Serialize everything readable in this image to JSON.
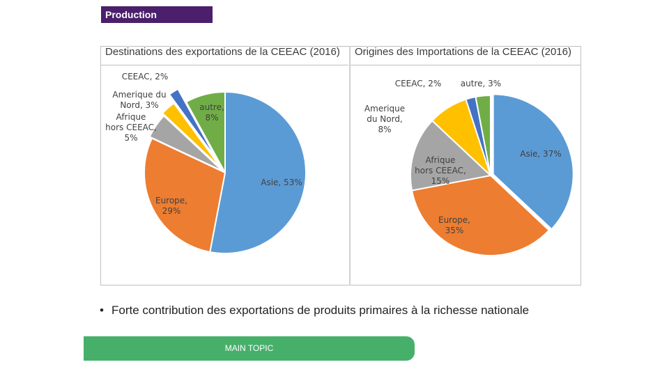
{
  "header": {
    "badge": "Production"
  },
  "chart_data": [
    {
      "type": "pie",
      "title": "Destinations des exportations de la CEEAC  (2016)",
      "slices": [
        {
          "label": "Asie, 53%",
          "value": 53,
          "color": "#5b9bd5"
        },
        {
          "label": "Europe, 29%",
          "value": 29,
          "color": "#ed7d31"
        },
        {
          "label": "Afrique hors CEEAC, 5%",
          "value": 5,
          "color": "#a5a5a5"
        },
        {
          "label": "Amerique du Nord, 3%",
          "value": 3,
          "color": "#ffc000"
        },
        {
          "label": "CEEAC, 2%",
          "value": 2,
          "color": "#4472c4"
        },
        {
          "label": "autre, 8%",
          "value": 8,
          "color": "#70ad47"
        }
      ]
    },
    {
      "type": "pie",
      "title": "Origines des Importations de la CEEAC  (2016)",
      "slices": [
        {
          "label": "Asie, 37%",
          "value": 37,
          "color": "#5b9bd5"
        },
        {
          "label": "Europe, 35%",
          "value": 35,
          "color": "#ed7d31"
        },
        {
          "label": "Afrique hors CEEAC, 15%",
          "value": 15,
          "color": "#a5a5a5"
        },
        {
          "label": "Amerique du Nord, 8%",
          "value": 8,
          "color": "#ffc000"
        },
        {
          "label": "CEEAC, 2%",
          "value": 2,
          "color": "#4472c4"
        },
        {
          "label": "autre, 3%",
          "value": 3,
          "color": "#70ad47"
        }
      ]
    }
  ],
  "bullet": {
    "marker": "•",
    "text": "Forte contribution des exportations de produits primaires à la richesse nationale"
  },
  "footer": {
    "label": "MAIN TOPIC"
  }
}
